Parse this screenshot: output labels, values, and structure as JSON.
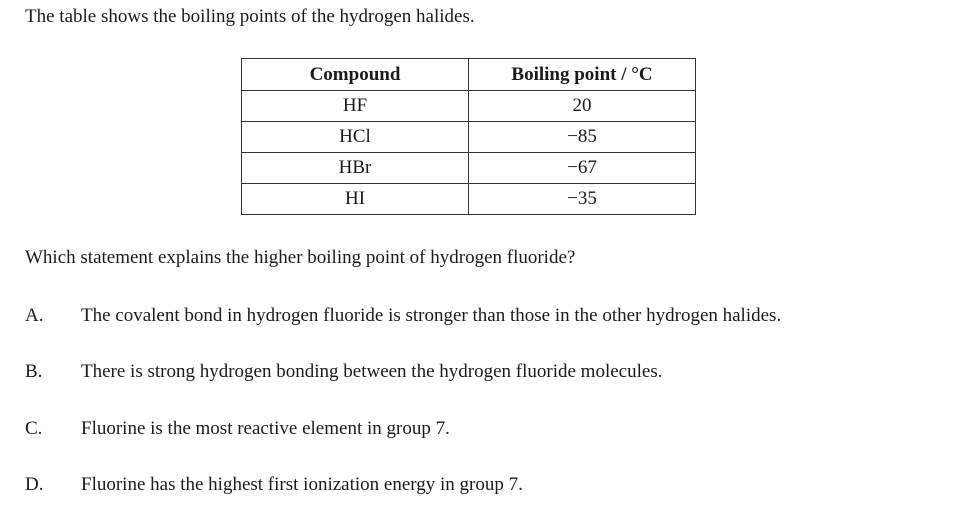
{
  "intro": "The table shows the boiling points of the hydrogen halides.",
  "table": {
    "headers": [
      "Compound",
      "Boiling point / °C"
    ],
    "rows": [
      [
        "HF",
        "20"
      ],
      [
        "HCl",
        "−85"
      ],
      [
        "HBr",
        "−67"
      ],
      [
        "HI",
        "−35"
      ]
    ]
  },
  "question": "Which statement explains the higher boiling point of hydrogen fluoride?",
  "options": [
    {
      "letter": "A.",
      "text": "The covalent bond in hydrogen fluoride is stronger than those in the other hydrogen halides."
    },
    {
      "letter": "B.",
      "text": "There is strong hydrogen bonding between the hydrogen fluoride molecules."
    },
    {
      "letter": "C.",
      "text": "Fluorine is the most reactive element in group 7."
    },
    {
      "letter": "D.",
      "text": "Fluorine has the highest first ionization energy in group 7."
    }
  ]
}
